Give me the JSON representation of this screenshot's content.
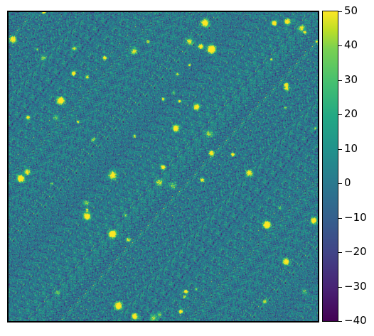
{
  "image": {
    "description_free": true,
    "background_colormap": "viridis",
    "noise_color_palette": [
      "#2a788e",
      "#21918c",
      "#22a884",
      "#31688e",
      "#35b779",
      "#443a83",
      "#6ece58",
      "#fde725"
    ],
    "source_color": "#fde725"
  },
  "colorbar": {
    "colormap": "viridis",
    "vmin": -40,
    "vmax": 50,
    "ticks": [
      {
        "value": 50,
        "label": "50"
      },
      {
        "value": 40,
        "label": "40"
      },
      {
        "value": 30,
        "label": "30"
      },
      {
        "value": 20,
        "label": "20"
      },
      {
        "value": 10,
        "label": "10"
      },
      {
        "value": 0,
        "label": "0"
      },
      {
        "value": -10,
        "label": "−10"
      },
      {
        "value": -20,
        "label": "−20"
      },
      {
        "value": -30,
        "label": "−30"
      },
      {
        "value": -40,
        "label": "−40"
      }
    ]
  }
}
